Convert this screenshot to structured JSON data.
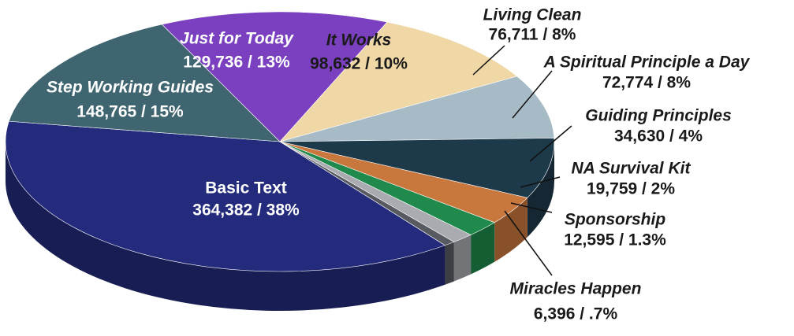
{
  "chart_data": {
    "type": "pie3d",
    "categories": [
      "Basic Text",
      "Step Working Guides",
      "Just for Today",
      "It Works",
      "Living Clean",
      "A Spiritual Principle a Day",
      "Guiding Principles",
      "NA Survival Kit",
      "Sponsorship",
      "Miracles Happen"
    ],
    "values": [
      364382,
      148765,
      129736,
      98632,
      76711,
      72774,
      34630,
      19759,
      12595,
      6396
    ],
    "value_labels": [
      "364,382 / 38%",
      "148,765 / 15%",
      "129,736 / 13%",
      "98,632 / 10%",
      "76,711 / 8%",
      "72,774 / 8%",
      "34,630 / 4%",
      "19,759 / 2%",
      "12,595 / 1.3%",
      "6,396 / .7%"
    ],
    "colors": [
      "#242b7c",
      "#3f6571",
      "#7b40c0",
      "#efd7a6",
      "#a7bbc6",
      "#1d3a4b",
      "#c8773d",
      "#1f8a4b",
      "#a9abb1",
      "#575b61"
    ]
  }
}
